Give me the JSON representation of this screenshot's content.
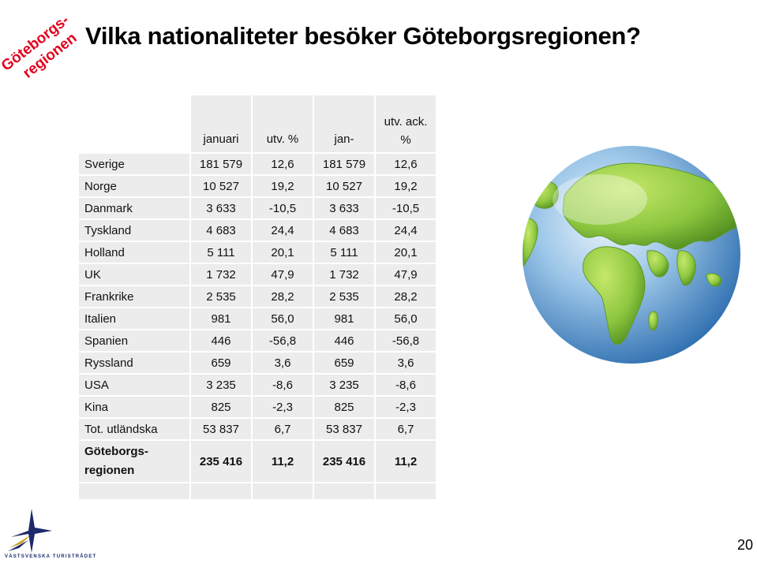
{
  "title": "Vilka nationaliteter besöker Göteborgsregionen?",
  "corner_logo": {
    "line1": "Göteborgs-",
    "line2": "regionen",
    "color": "#e3001b"
  },
  "table": {
    "headers": {
      "c1": "januari",
      "c2": "utv. %",
      "c3": "jan-",
      "c4_line1": "utv. ack.",
      "c4_line2": "%"
    },
    "rows": [
      {
        "label": "Sverige",
        "jan": "181 579",
        "utv": "12,6",
        "jan_ack": "181 579",
        "utv_ack": "12,6"
      },
      {
        "label": "Norge",
        "jan": "10 527",
        "utv": "19,2",
        "jan_ack": "10 527",
        "utv_ack": "19,2"
      },
      {
        "label": "Danmark",
        "jan": "3 633",
        "utv": "-10,5",
        "jan_ack": "3 633",
        "utv_ack": "-10,5"
      },
      {
        "label": "Tyskland",
        "jan": "4 683",
        "utv": "24,4",
        "jan_ack": "4 683",
        "utv_ack": "24,4"
      },
      {
        "label": "Holland",
        "jan": "5 111",
        "utv": "20,1",
        "jan_ack": "5 111",
        "utv_ack": "20,1"
      },
      {
        "label": "UK",
        "jan": "1 732",
        "utv": "47,9",
        "jan_ack": "1 732",
        "utv_ack": "47,9"
      },
      {
        "label": "Frankrike",
        "jan": "2 535",
        "utv": "28,2",
        "jan_ack": "2 535",
        "utv_ack": "28,2"
      },
      {
        "label": "Italien",
        "jan": "981",
        "utv": "56,0",
        "jan_ack": "981",
        "utv_ack": "56,0"
      },
      {
        "label": "Spanien",
        "jan": "446",
        "utv": "-56,8",
        "jan_ack": "446",
        "utv_ack": "-56,8"
      },
      {
        "label": "Ryssland",
        "jan": "659",
        "utv": "3,6",
        "jan_ack": "659",
        "utv_ack": "3,6"
      },
      {
        "label": "USA",
        "jan": "3 235",
        "utv": "-8,6",
        "jan_ack": "3 235",
        "utv_ack": "-8,6"
      },
      {
        "label": "Kina",
        "jan": "825",
        "utv": "-2,3",
        "jan_ack": "825",
        "utv_ack": "-2,3"
      },
      {
        "label": "Tot. utländska",
        "jan": "53 837",
        "utv": "6,7",
        "jan_ack": "53 837",
        "utv_ack": "6,7"
      }
    ],
    "total": {
      "label_line1": "Göteborgs-",
      "label_line2": "regionen",
      "jan": "235 416",
      "utv": "11,2",
      "jan_ack": "235 416",
      "utv_ack": "11,2"
    }
  },
  "footer": {
    "logo_text": "VÄSTSVENSKA TURISTRÅDET",
    "page_number": "20"
  },
  "colors": {
    "cell_bg": "#ececec",
    "globe_ocean": "#4f8fc8",
    "globe_land": "#8cc63f",
    "logo_navy": "#1a2a6c",
    "logo_gold": "#c9a227"
  }
}
